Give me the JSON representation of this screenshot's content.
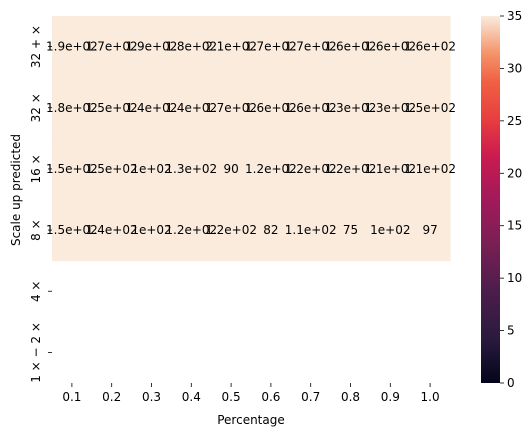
{
  "chart_data": {
    "type": "heatmap",
    "xlabel": "Percentage",
    "ylabel": "Scale up predicted",
    "x_categories": [
      "0.1",
      "0.2",
      "0.3",
      "0.4",
      "0.5",
      "0.6",
      "0.7",
      "0.8",
      "0.9",
      "1.0"
    ],
    "y_categories": [
      "32 + ×",
      "32 ×",
      "16 ×",
      "8 ×",
      "4 ×",
      "1 × − 2 ×"
    ],
    "cells": [
      [
        "1.9e+02",
        "1.7e+02",
        "1.9e+02",
        "1.8e+02",
        "2.1e+02",
        "1.7e+02",
        "1.7e+02",
        "1.6e+02",
        "1.6e+02",
        "1.6e+02"
      ],
      [
        "1.8e+02",
        "1.5e+02",
        "1.4e+02",
        "1.4e+02",
        "1.7e+02",
        "1.6e+02",
        "1.6e+02",
        "1.3e+02",
        "1.3e+02",
        "1.5e+02"
      ],
      [
        "1.5e+02",
        "1.5e+02",
        "1e+02",
        "1.3e+02",
        "90",
        "1.2e+02",
        "1.2e+02",
        "1.2e+02",
        "1.1e+02",
        "1.1e+02"
      ],
      [
        "1.5e+02",
        "1.4e+02",
        "1e+02",
        "1.2e+02",
        "1.2e+02",
        "82",
        "1.1e+02",
        "75",
        "1e+02",
        "97"
      ],
      [
        null,
        null,
        null,
        null,
        null,
        null,
        null,
        null,
        null,
        null
      ],
      [
        null,
        null,
        null,
        null,
        null,
        null,
        null,
        null,
        null,
        null
      ]
    ],
    "colorbar": {
      "min": 0,
      "max": 35,
      "ticks": [
        "0",
        "5",
        "10",
        "15",
        "20",
        "25",
        "30",
        "35"
      ],
      "colormap": "rocket"
    },
    "cell_color": "#faebdd",
    "grid": false
  }
}
